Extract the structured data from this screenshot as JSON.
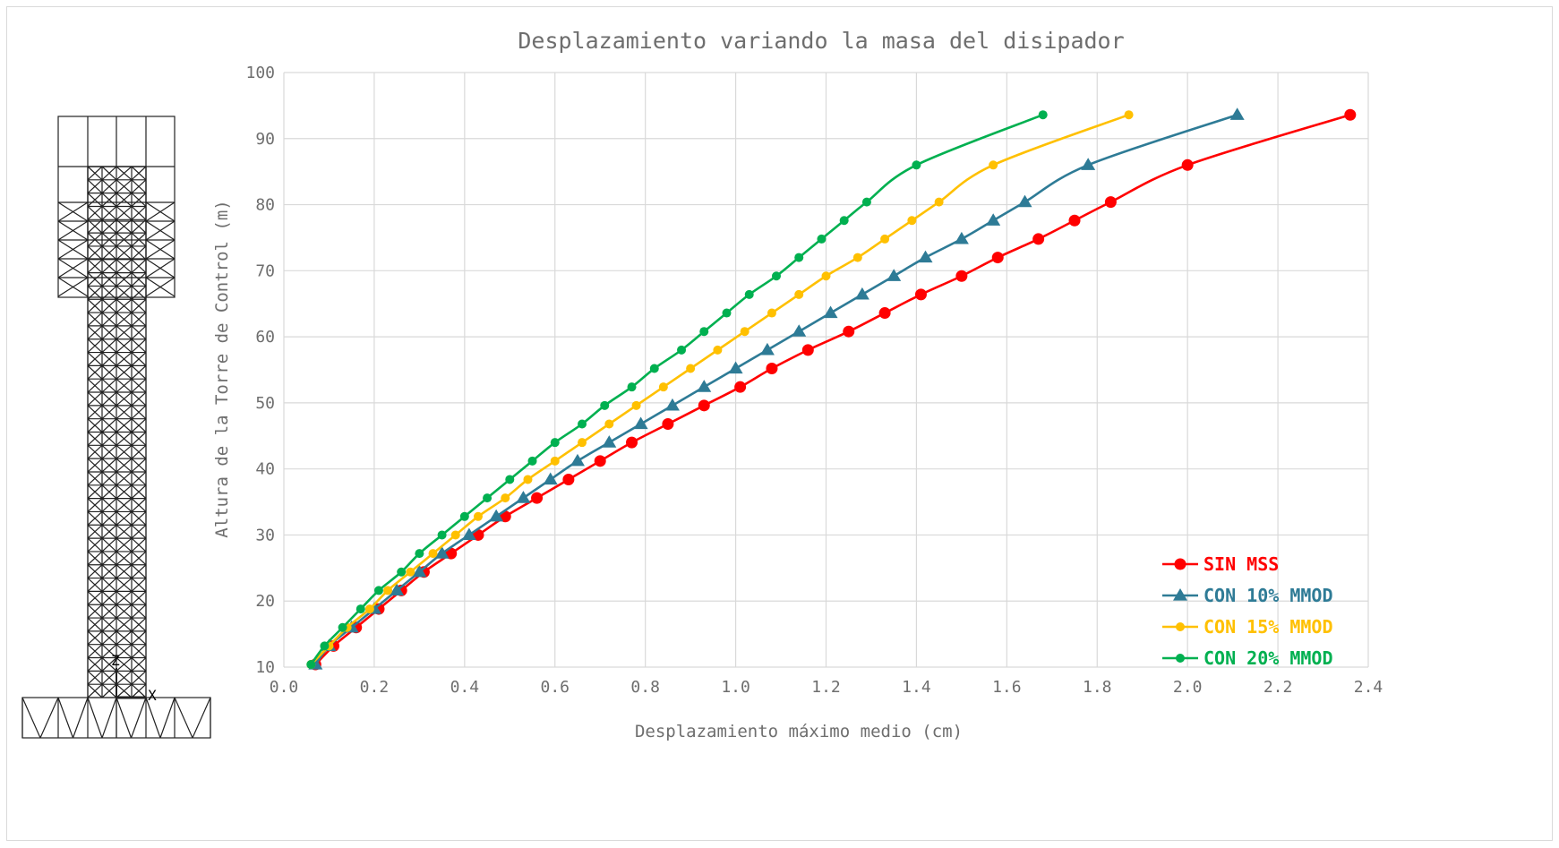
{
  "chart_data": {
    "type": "line",
    "title": "Desplazamiento variando la masa del disipador",
    "xlabel": "Desplazamiento máximo medio (cm)",
    "ylabel": "Altura de la Torre de Control  (m)",
    "xlim": [
      0.0,
      2.4
    ],
    "ylim": [
      10,
      100
    ],
    "xticks": [
      "0.0",
      "0.2",
      "0.4",
      "0.6",
      "0.8",
      "1.0",
      "1.2",
      "1.4",
      "1.6",
      "1.8",
      "2.0",
      "2.2",
      "2.4"
    ],
    "yticks": [
      "10",
      "20",
      "30",
      "40",
      "50",
      "60",
      "70",
      "80",
      "90",
      "100"
    ],
    "grid": true,
    "legend_position": "bottom-right",
    "series": [
      {
        "name": "SIN MSS",
        "color": "#ff0000",
        "marker": "circle-large",
        "points": [
          [
            0.07,
            10.4
          ],
          [
            0.11,
            13.2
          ],
          [
            0.16,
            16.0
          ],
          [
            0.21,
            18.8
          ],
          [
            0.26,
            21.6
          ],
          [
            0.31,
            24.4
          ],
          [
            0.37,
            27.2
          ],
          [
            0.43,
            30.0
          ],
          [
            0.49,
            32.8
          ],
          [
            0.56,
            35.6
          ],
          [
            0.63,
            38.4
          ],
          [
            0.7,
            41.2
          ],
          [
            0.77,
            44.0
          ],
          [
            0.85,
            46.8
          ],
          [
            0.93,
            49.6
          ],
          [
            1.01,
            52.4
          ],
          [
            1.08,
            55.2
          ],
          [
            1.16,
            58.0
          ],
          [
            1.25,
            60.8
          ],
          [
            1.33,
            63.6
          ],
          [
            1.41,
            66.4
          ],
          [
            1.5,
            69.2
          ],
          [
            1.58,
            72.0
          ],
          [
            1.67,
            74.8
          ],
          [
            1.75,
            77.6
          ],
          [
            1.83,
            80.4
          ],
          [
            2.0,
            86.0
          ],
          [
            2.36,
            93.6
          ]
        ]
      },
      {
        "name": "CON 10% MMOD",
        "color": "#2e7b96",
        "marker": "triangle",
        "points": [
          [
            0.07,
            10.4
          ],
          [
            0.1,
            13.2
          ],
          [
            0.15,
            16.0
          ],
          [
            0.2,
            18.8
          ],
          [
            0.25,
            21.6
          ],
          [
            0.3,
            24.4
          ],
          [
            0.35,
            27.2
          ],
          [
            0.41,
            30.0
          ],
          [
            0.47,
            32.8
          ],
          [
            0.53,
            35.6
          ],
          [
            0.59,
            38.4
          ],
          [
            0.65,
            41.2
          ],
          [
            0.72,
            44.0
          ],
          [
            0.79,
            46.8
          ],
          [
            0.86,
            49.6
          ],
          [
            0.93,
            52.4
          ],
          [
            1.0,
            55.2
          ],
          [
            1.07,
            58.0
          ],
          [
            1.14,
            60.8
          ],
          [
            1.21,
            63.6
          ],
          [
            1.28,
            66.4
          ],
          [
            1.35,
            69.2
          ],
          [
            1.42,
            72.0
          ],
          [
            1.5,
            74.8
          ],
          [
            1.57,
            77.6
          ],
          [
            1.64,
            80.4
          ],
          [
            1.78,
            86.0
          ],
          [
            2.11,
            93.6
          ]
        ]
      },
      {
        "name": "CON 15% MMOD",
        "color": "#ffc000",
        "marker": "circle-small",
        "points": [
          [
            0.06,
            10.4
          ],
          [
            0.1,
            13.2
          ],
          [
            0.14,
            16.0
          ],
          [
            0.19,
            18.8
          ],
          [
            0.23,
            21.6
          ],
          [
            0.28,
            24.4
          ],
          [
            0.33,
            27.2
          ],
          [
            0.38,
            30.0
          ],
          [
            0.43,
            32.8
          ],
          [
            0.49,
            35.6
          ],
          [
            0.54,
            38.4
          ],
          [
            0.6,
            41.2
          ],
          [
            0.66,
            44.0
          ],
          [
            0.72,
            46.8
          ],
          [
            0.78,
            49.6
          ],
          [
            0.84,
            52.4
          ],
          [
            0.9,
            55.2
          ],
          [
            0.96,
            58.0
          ],
          [
            1.02,
            60.8
          ],
          [
            1.08,
            63.6
          ],
          [
            1.14,
            66.4
          ],
          [
            1.2,
            69.2
          ],
          [
            1.27,
            72.0
          ],
          [
            1.33,
            74.8
          ],
          [
            1.39,
            77.6
          ],
          [
            1.45,
            80.4
          ],
          [
            1.57,
            86.0
          ],
          [
            1.87,
            93.6
          ]
        ]
      },
      {
        "name": "CON 20% MMOD",
        "color": "#00b050",
        "marker": "circle-small",
        "points": [
          [
            0.06,
            10.4
          ],
          [
            0.09,
            13.2
          ],
          [
            0.13,
            16.0
          ],
          [
            0.17,
            18.8
          ],
          [
            0.21,
            21.6
          ],
          [
            0.26,
            24.4
          ],
          [
            0.3,
            27.2
          ],
          [
            0.35,
            30.0
          ],
          [
            0.4,
            32.8
          ],
          [
            0.45,
            35.6
          ],
          [
            0.5,
            38.4
          ],
          [
            0.55,
            41.2
          ],
          [
            0.6,
            44.0
          ],
          [
            0.66,
            46.8
          ],
          [
            0.71,
            49.6
          ],
          [
            0.77,
            52.4
          ],
          [
            0.82,
            55.2
          ],
          [
            0.88,
            58.0
          ],
          [
            0.93,
            60.8
          ],
          [
            0.98,
            63.6
          ],
          [
            1.03,
            66.4
          ],
          [
            1.09,
            69.2
          ],
          [
            1.14,
            72.0
          ],
          [
            1.19,
            74.8
          ],
          [
            1.24,
            77.6
          ],
          [
            1.29,
            80.4
          ],
          [
            1.4,
            86.0
          ],
          [
            1.68,
            93.6
          ]
        ]
      }
    ]
  },
  "diagram": {
    "axis_labels": [
      "Z",
      "X"
    ]
  }
}
